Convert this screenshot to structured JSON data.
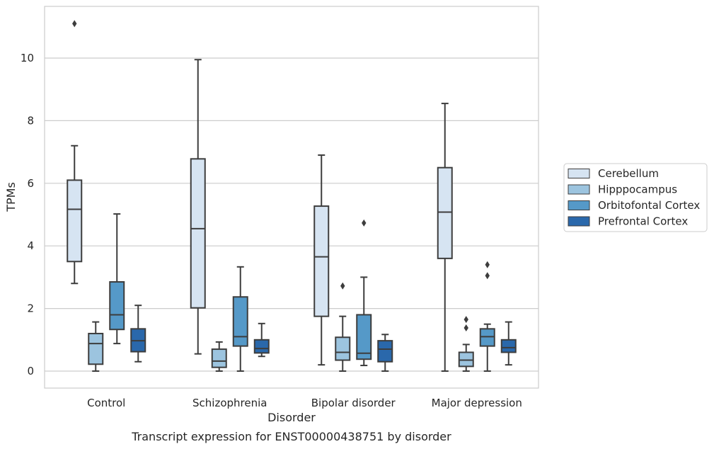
{
  "chart_data": {
    "type": "box",
    "xlabel": "Disorder",
    "ylabel": "TPMs",
    "caption": "Transcript expression for ENST00000438751 by disorder",
    "ylim": [
      -0.5,
      11.7
    ],
    "yticks": [
      0,
      2,
      4,
      6,
      8,
      10
    ],
    "grid": "horizontal",
    "legend_position": "right",
    "categories": [
      "Control",
      "Schizophrenia",
      "Bipolar disorder",
      "Major depression"
    ],
    "series": [
      {
        "name": "Cerebellum",
        "color": "#d6e4f2",
        "boxes": [
          {
            "whislo": 2.8,
            "q1": 3.5,
            "med": 5.17,
            "q3": 6.1,
            "whishi": 7.2,
            "fliers": [
              11.1
            ]
          },
          {
            "whislo": 0.55,
            "q1": 2.02,
            "med": 4.55,
            "q3": 6.78,
            "whishi": 9.95,
            "fliers": []
          },
          {
            "whislo": 0.2,
            "q1": 1.75,
            "med": 3.65,
            "q3": 5.27,
            "whishi": 6.9,
            "fliers": []
          },
          {
            "whislo": 0.0,
            "q1": 3.6,
            "med": 5.08,
            "q3": 6.5,
            "whishi": 8.55,
            "fliers": []
          }
        ]
      },
      {
        "name": "Hipppocampus",
        "color": "#9cc4df",
        "boxes": [
          {
            "whislo": 0.0,
            "q1": 0.22,
            "med": 0.88,
            "q3": 1.2,
            "whishi": 1.57,
            "fliers": []
          },
          {
            "whislo": 0.0,
            "q1": 0.12,
            "med": 0.32,
            "q3": 0.7,
            "whishi": 0.93,
            "fliers": []
          },
          {
            "whislo": 0.0,
            "q1": 0.35,
            "med": 0.6,
            "q3": 1.08,
            "whishi": 1.75,
            "fliers": [
              2.72
            ]
          },
          {
            "whislo": 0.0,
            "q1": 0.15,
            "med": 0.35,
            "q3": 0.6,
            "whishi": 0.85,
            "fliers": [
              1.38,
              1.65
            ]
          }
        ]
      },
      {
        "name": "Orbitofontal Cortex",
        "color": "#5599c8",
        "boxes": [
          {
            "whislo": 0.88,
            "q1": 1.33,
            "med": 1.8,
            "q3": 2.85,
            "whishi": 5.02,
            "fliers": []
          },
          {
            "whislo": 0.0,
            "q1": 0.8,
            "med": 1.1,
            "q3": 2.37,
            "whishi": 3.33,
            "fliers": []
          },
          {
            "whislo": 0.18,
            "q1": 0.38,
            "med": 0.57,
            "q3": 1.8,
            "whishi": 3.0,
            "fliers": [
              4.73
            ]
          },
          {
            "whislo": 0.0,
            "q1": 0.8,
            "med": 1.1,
            "q3": 1.35,
            "whishi": 1.5,
            "fliers": [
              3.05,
              3.4
            ]
          }
        ]
      },
      {
        "name": "Prefrontal Cortex",
        "color": "#2a68ab",
        "boxes": [
          {
            "whislo": 0.3,
            "q1": 0.62,
            "med": 0.97,
            "q3": 1.35,
            "whishi": 2.1,
            "fliers": []
          },
          {
            "whislo": 0.47,
            "q1": 0.58,
            "med": 0.72,
            "q3": 1.0,
            "whishi": 1.52,
            "fliers": []
          },
          {
            "whislo": 0.0,
            "q1": 0.3,
            "med": 0.7,
            "q3": 0.97,
            "whishi": 1.17,
            "fliers": []
          },
          {
            "whislo": 0.2,
            "q1": 0.6,
            "med": 0.75,
            "q3": 1.0,
            "whishi": 1.57,
            "fliers": []
          }
        ]
      }
    ]
  }
}
